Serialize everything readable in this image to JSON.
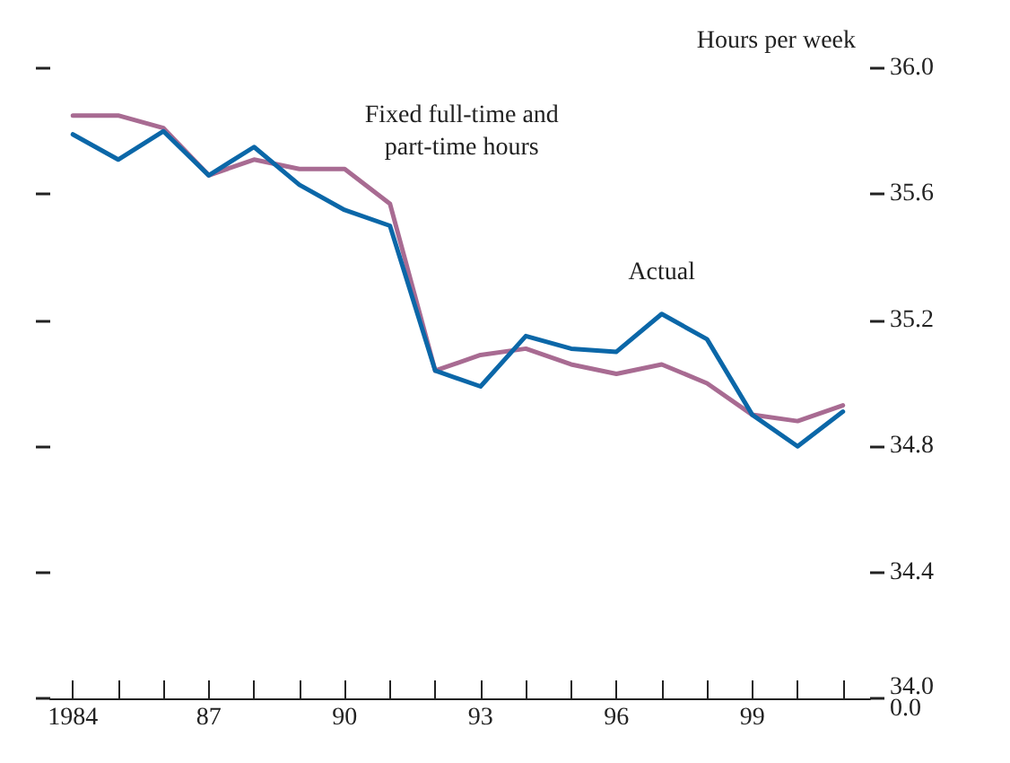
{
  "chart_data": {
    "type": "line",
    "ylabel": "Hours per week",
    "x": [
      1984,
      1985,
      1986,
      1987,
      1988,
      1989,
      1990,
      1991,
      1992,
      1993,
      1994,
      1995,
      1996,
      1997,
      1998,
      1999,
      2000,
      2001
    ],
    "series": [
      {
        "name": "Actual",
        "color": "#0b67a8",
        "values": [
          35.79,
          35.71,
          35.8,
          35.66,
          35.75,
          35.63,
          35.55,
          35.5,
          35.04,
          34.99,
          35.15,
          35.11,
          35.1,
          35.22,
          35.14,
          34.9,
          34.8,
          34.91
        ]
      },
      {
        "name": "Fixed full-time and\npart-time hours",
        "color": "#a86b92",
        "values": [
          35.85,
          35.85,
          35.81,
          35.66,
          35.71,
          35.68,
          35.68,
          35.57,
          35.04,
          35.09,
          35.11,
          35.06,
          35.03,
          35.06,
          35.0,
          34.9,
          34.88,
          34.93
        ]
      }
    ],
    "xlim": [
      1983.5,
      2001.6
    ],
    "xticks": [
      {
        "value": 1984,
        "label": "1984"
      },
      {
        "value": 1985,
        "label": null
      },
      {
        "value": 1986,
        "label": null
      },
      {
        "value": 1987,
        "label": "87"
      },
      {
        "value": 1988,
        "label": null
      },
      {
        "value": 1989,
        "label": null
      },
      {
        "value": 1990,
        "label": "90"
      },
      {
        "value": 1991,
        "label": null
      },
      {
        "value": 1992,
        "label": null
      },
      {
        "value": 1993,
        "label": "93"
      },
      {
        "value": 1994,
        "label": null
      },
      {
        "value": 1995,
        "label": null
      },
      {
        "value": 1996,
        "label": "96"
      },
      {
        "value": 1997,
        "label": null
      },
      {
        "value": 1998,
        "label": null
      },
      {
        "value": 1999,
        "label": "99"
      },
      {
        "value": 2000,
        "label": null
      },
      {
        "value": 2001,
        "label": null
      }
    ],
    "ylim": [
      34.0,
      36.0
    ],
    "yticks": [
      {
        "value": 34.0,
        "label": "34.0\n0.0"
      },
      {
        "value": 34.4,
        "label": "34.4"
      },
      {
        "value": 34.8,
        "label": "34.8"
      },
      {
        "value": 35.2,
        "label": "35.2"
      },
      {
        "value": 35.6,
        "label": "35.6"
      },
      {
        "value": 36.0,
        "label": "36.0"
      }
    ],
    "grid": false,
    "legend": false,
    "marker": "none",
    "line_style": "solid"
  }
}
